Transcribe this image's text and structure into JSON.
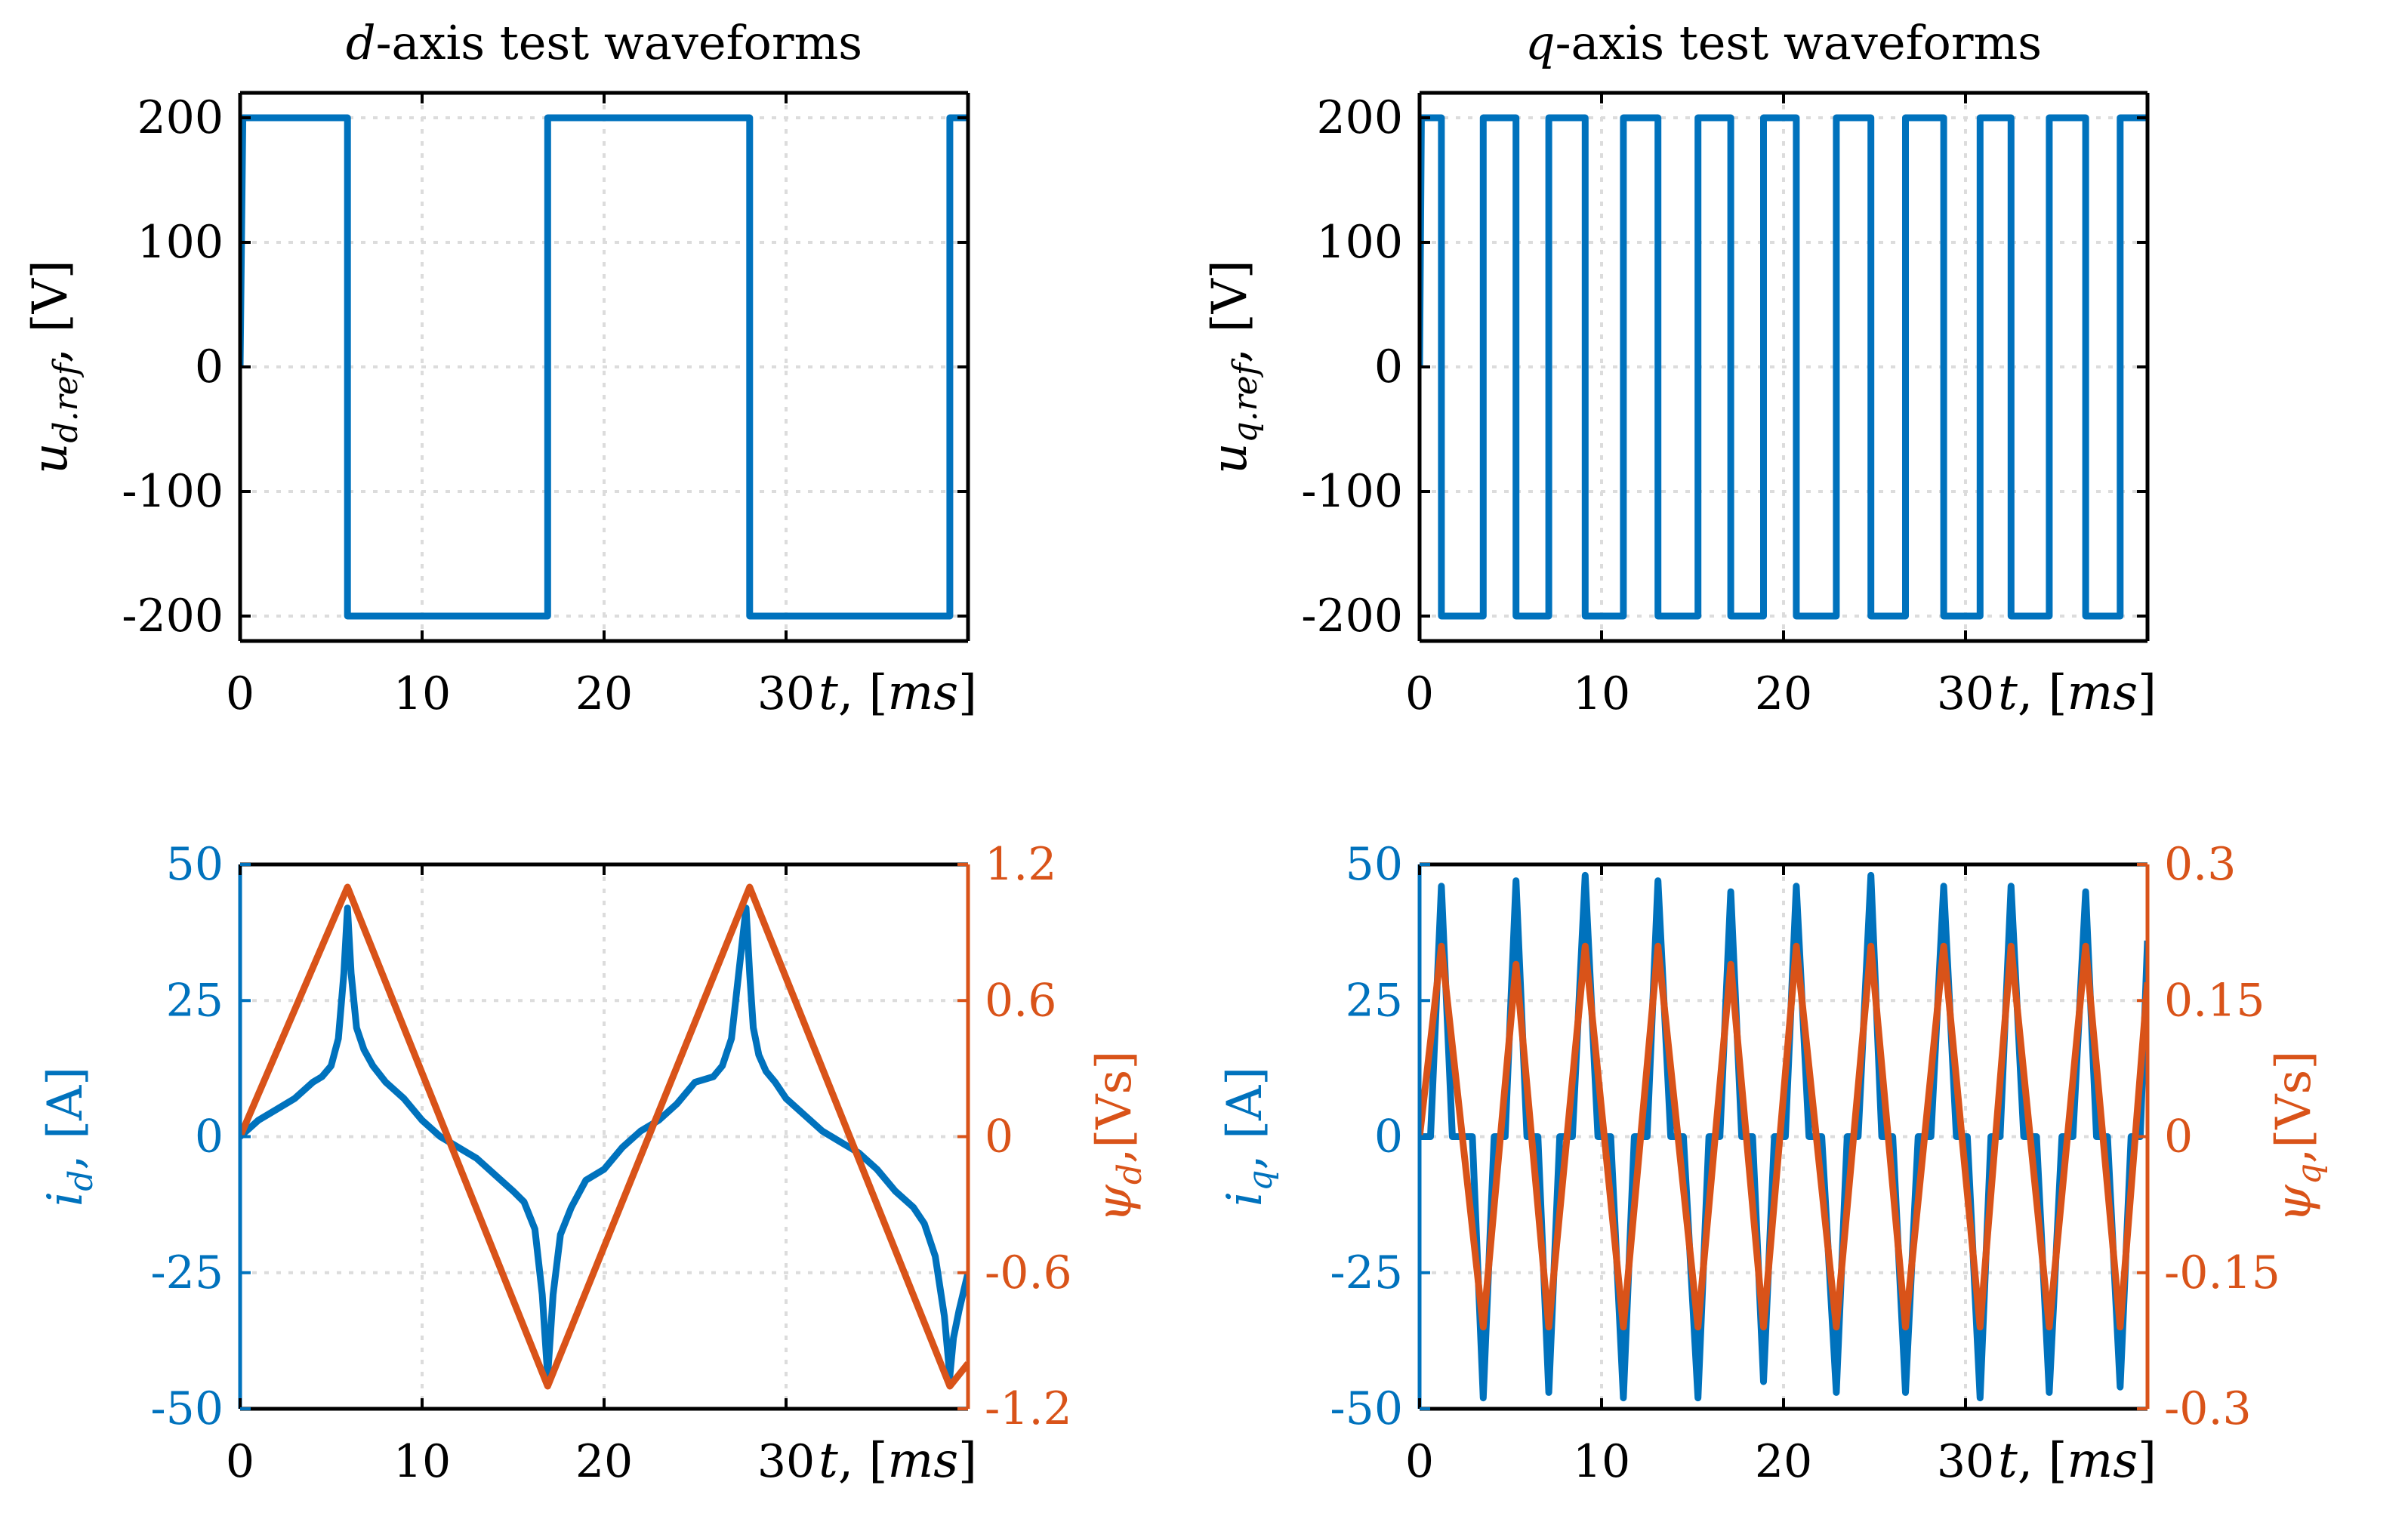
{
  "colors": {
    "blue": "#0072BD",
    "orange": "#D95319",
    "axis": "#000000",
    "grid": "#dcdcdc"
  },
  "chart_data": [
    {
      "id": "ud",
      "type": "line",
      "title_italic": "d",
      "title_rest": "-axis test waveforms",
      "ylabel": "u_{d.ref}, [V]",
      "ylabel_main": "u",
      "ylabel_sub": "d.ref",
      "ylabel_unit": ", [V]",
      "xlabel": "t, [ms]",
      "xlim": [
        0,
        40
      ],
      "ylim": [
        -220,
        220
      ],
      "xticks": [
        0,
        10,
        20,
        30
      ],
      "xtick_labels": [
        "0",
        "10",
        "20",
        "30"
      ],
      "yticks": [
        200,
        100,
        0,
        -100,
        -200
      ],
      "ytick_labels": [
        "200",
        "100",
        "0",
        "-100",
        "-200"
      ],
      "grid": true,
      "series": [
        {
          "axis": "left",
          "color": "blue",
          "x": [
            0,
            0.15,
            5.9,
            5.9,
            16.9,
            16.9,
            28.0,
            28.0,
            39.0,
            39.0,
            40
          ],
          "y": [
            0,
            200,
            200,
            -200,
            -200,
            200,
            200,
            -200,
            -200,
            200,
            200
          ]
        }
      ]
    },
    {
      "id": "uq",
      "type": "line",
      "title_italic": "q",
      "title_rest": "-axis test waveforms",
      "ylabel": "u_{q.ref}, [V]",
      "ylabel_main": "u",
      "ylabel_sub": "q.ref",
      "ylabel_unit": ", [V]",
      "xlabel": "t, [ms]",
      "xlim": [
        0,
        40
      ],
      "ylim": [
        -220,
        220
      ],
      "xticks": [
        0,
        10,
        20,
        30
      ],
      "xtick_labels": [
        "0",
        "10",
        "20",
        "30"
      ],
      "yticks": [
        200,
        100,
        0,
        -100,
        -200
      ],
      "ytick_labels": [
        "200",
        "100",
        "0",
        "-100",
        "-200"
      ],
      "grid": true,
      "series": [
        {
          "axis": "left",
          "color": "blue",
          "x": [
            0,
            0.1,
            1.2,
            1.2,
            3.5,
            3.5,
            5.3,
            5.3,
            7.1,
            7.1,
            9.1,
            9.1,
            11.2,
            11.2,
            13.1,
            13.1,
            15.3,
            15.3,
            17.1,
            17.1,
            18.9,
            18.9,
            20.7,
            20.7,
            22.9,
            22.9,
            24.8,
            24.8,
            26.7,
            26.7,
            28.8,
            28.8,
            30.8,
            30.8,
            32.5,
            32.5,
            34.6,
            34.6,
            36.6,
            36.6,
            38.5,
            38.5,
            40
          ],
          "y": [
            0,
            200,
            200,
            -200,
            -200,
            200,
            200,
            -200,
            -200,
            200,
            200,
            -200,
            -200,
            200,
            200,
            -200,
            -200,
            200,
            200,
            -200,
            -200,
            200,
            200,
            -200,
            -200,
            200,
            200,
            -200,
            -200,
            200,
            200,
            -200,
            -200,
            200,
            200,
            -200,
            -200,
            200,
            200,
            -200,
            -200,
            200,
            200
          ]
        }
      ]
    },
    {
      "id": "id",
      "type": "line",
      "xlabel": "t, [ms]",
      "xlim": [
        0,
        40
      ],
      "ylim": [
        -50,
        50
      ],
      "y2lim": [
        -1.2,
        1.2
      ],
      "ylabel_main": "i",
      "ylabel_sub": "d",
      "ylabel_unit": ", [A]",
      "ylabel": "i_d, [A]",
      "y2label_main": "ψ",
      "y2label_sub": "d",
      "y2label_unit": ",[Vs]",
      "y2label": "ψ_d,[Vs]",
      "xticks": [
        0,
        10,
        20,
        30
      ],
      "xtick_labels": [
        "0",
        "10",
        "20",
        "30"
      ],
      "yticks": [
        50,
        25,
        0,
        -25,
        -50
      ],
      "ytick_labels": [
        "50",
        "25",
        "0",
        "-25",
        "-50"
      ],
      "y2ticks": [
        1.2,
        0.6,
        0,
        -0.6,
        -1.2
      ],
      "y2tick_labels": [
        "1.2",
        "0.6",
        "0",
        "-0.6",
        "-1.2"
      ],
      "grid": true,
      "series": [
        {
          "axis": "left",
          "color": "blue",
          "x": [
            0,
            1,
            2,
            3,
            4,
            4.5,
            5,
            5.4,
            5.7,
            5.9,
            6.1,
            6.4,
            6.8,
            7.3,
            8,
            9,
            10,
            11,
            12,
            13,
            14,
            15,
            15.6,
            16.2,
            16.6,
            16.9,
            17.2,
            17.6,
            18.2,
            19,
            20,
            21,
            22,
            23,
            24,
            25,
            26,
            26.5,
            27,
            27.4,
            27.8,
            28.0,
            28.2,
            28.5,
            28.9,
            29.4,
            30,
            31,
            32,
            33,
            34,
            35,
            36,
            37,
            37.6,
            38.2,
            38.7,
            39.0,
            39.2,
            39.5,
            40
          ],
          "y": [
            0,
            3,
            5,
            7,
            10,
            11,
            13,
            18,
            30,
            42,
            30,
            20,
            16,
            13,
            10,
            7,
            3,
            0,
            -2,
            -4,
            -7,
            -10,
            -12,
            -17,
            -29,
            -44,
            -29,
            -18,
            -13,
            -8,
            -6,
            -2,
            1,
            3,
            6,
            10,
            11,
            13,
            18,
            30,
            42,
            30,
            20,
            15,
            12,
            10,
            7,
            4,
            1,
            -1,
            -3,
            -6,
            -10,
            -13,
            -16,
            -22,
            -33,
            -44,
            -37,
            -32,
            -25
          ]
        },
        {
          "axis": "right",
          "color": "orange",
          "x": [
            0,
            5.9,
            16.9,
            28.0,
            39.0,
            40
          ],
          "y": [
            0,
            1.1,
            -1.1,
            1.1,
            -1.1,
            -1.0
          ]
        }
      ]
    },
    {
      "id": "iq",
      "type": "line",
      "xlabel": "t, [ms]",
      "xlim": [
        0,
        40
      ],
      "ylim": [
        -50,
        50
      ],
      "y2lim": [
        -0.3,
        0.3
      ],
      "ylabel_main": "i",
      "ylabel_sub": "q",
      "ylabel_unit": ", [A]",
      "ylabel": "i_q, [A]",
      "y2label_main": "ψ",
      "y2label_sub": "q",
      "y2label_unit": ",[Vs]",
      "y2label": "ψ_q,[Vs]",
      "xticks": [
        0,
        10,
        20,
        30
      ],
      "xtick_labels": [
        "0",
        "10",
        "20",
        "30"
      ],
      "yticks": [
        50,
        25,
        0,
        -25,
        -50
      ],
      "ytick_labels": [
        "50",
        "25",
        "0",
        "-25",
        "-50"
      ],
      "y2ticks": [
        0.3,
        0.15,
        0,
        -0.15,
        -0.3
      ],
      "y2tick_labels": [
        "0.3",
        "0.15",
        "0",
        "-0.15",
        "-0.3"
      ],
      "grid": true,
      "series": [
        {
          "axis": "left",
          "color": "blue",
          "x": [
            0,
            0.6,
            1.2,
            1.8,
            2.4,
            2.9,
            3.5,
            4.1,
            4.7,
            5.3,
            5.9,
            6.5,
            7.1,
            7.7,
            8.4,
            9.1,
            9.8,
            10.5,
            11.2,
            11.8,
            12.5,
            13.1,
            13.8,
            14.5,
            15.3,
            15.9,
            16.5,
            17.1,
            17.7,
            18.3,
            18.9,
            19.5,
            20.1,
            20.7,
            21.4,
            22.1,
            22.9,
            23.5,
            24.1,
            24.8,
            25.4,
            26.0,
            26.7,
            27.4,
            28.1,
            28.8,
            29.5,
            30.1,
            30.8,
            31.4,
            31.9,
            32.5,
            33.2,
            33.9,
            34.6,
            35.3,
            35.9,
            36.6,
            37.2,
            37.8,
            38.5,
            39.1,
            39.6,
            40
          ],
          "y": [
            0,
            0,
            46,
            0,
            0,
            0,
            -48,
            0,
            0,
            47,
            0,
            0,
            -47,
            0,
            0,
            48,
            0,
            0,
            -48,
            0,
            0,
            47,
            0,
            0,
            -48,
            0,
            0,
            45,
            0,
            0,
            -45,
            0,
            0,
            46,
            0,
            0,
            -47,
            0,
            0,
            48,
            0,
            0,
            -47,
            0,
            0,
            46,
            0,
            0,
            -48,
            0,
            0,
            46,
            0,
            0,
            -47,
            0,
            0,
            45,
            0,
            0,
            -46,
            0,
            0,
            36
          ]
        },
        {
          "axis": "right",
          "color": "orange",
          "x": [
            0,
            1.2,
            3.5,
            5.3,
            7.1,
            9.1,
            11.2,
            13.1,
            15.3,
            17.1,
            18.9,
            20.7,
            22.9,
            24.8,
            26.7,
            28.8,
            30.8,
            32.5,
            34.6,
            36.6,
            38.5,
            40
          ],
          "y": [
            0,
            0.21,
            -0.21,
            0.19,
            -0.21,
            0.21,
            -0.21,
            0.21,
            -0.21,
            0.19,
            -0.21,
            0.21,
            -0.21,
            0.21,
            -0.21,
            0.21,
            -0.21,
            0.21,
            -0.21,
            0.21,
            -0.21,
            0.17
          ]
        }
      ]
    }
  ]
}
